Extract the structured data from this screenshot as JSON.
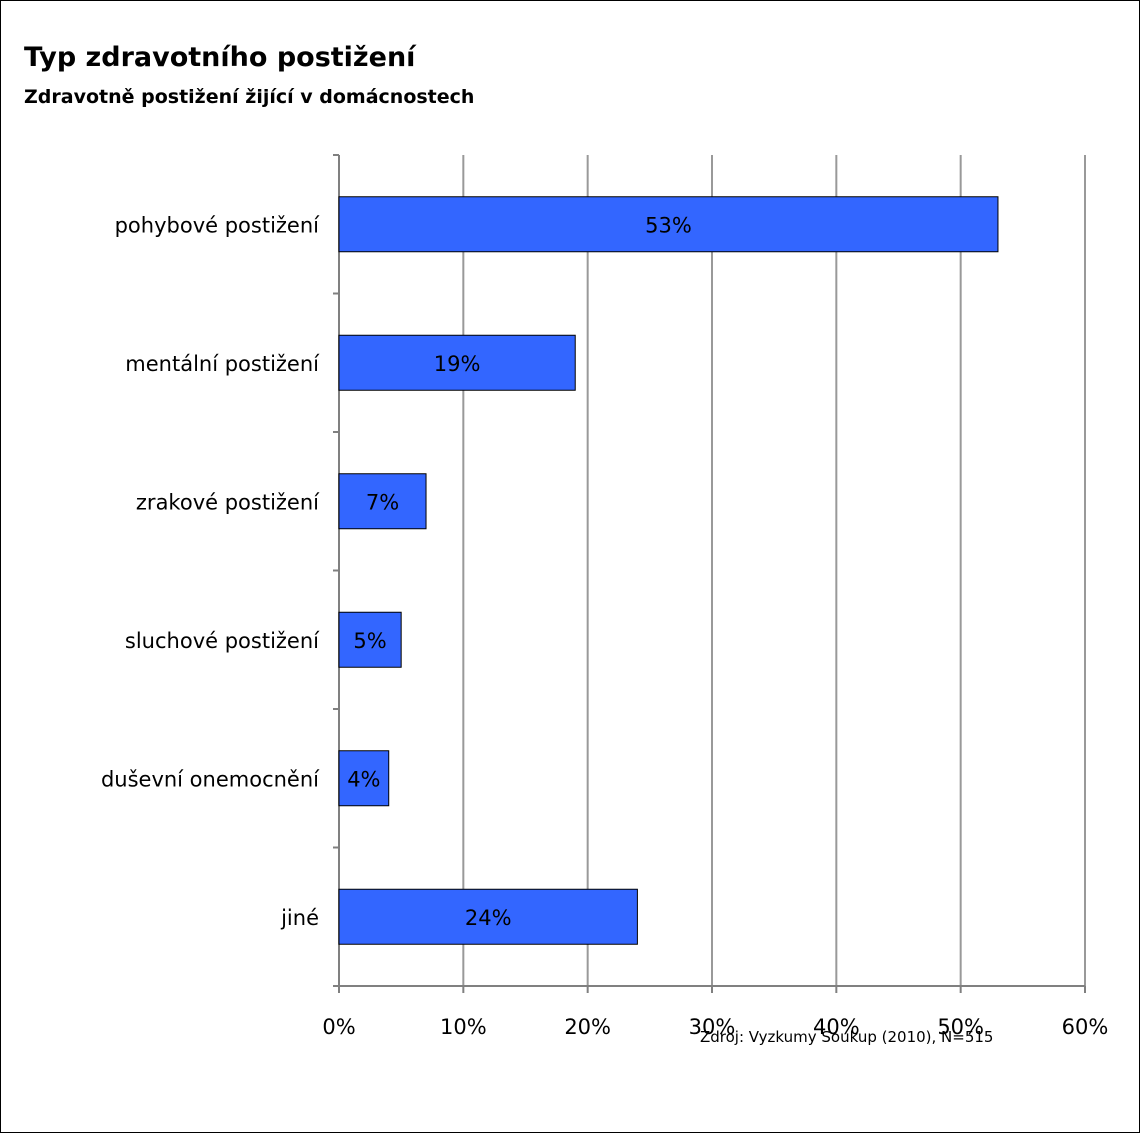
{
  "title": "Typ zdravotního postižení",
  "subtitle": "Zdravotně postižení žijící v domácnostech",
  "source": "Zdroj:  Vyzkumy Soukup (2010), N=515",
  "colors": {
    "bar": "#3366ff",
    "bar_stroke": "#000000",
    "grid": "#999999",
    "axis": "#808080",
    "text": "#000000"
  },
  "chart_data": {
    "type": "bar",
    "orientation": "horizontal",
    "categories": [
      "pohybové postižení",
      "mentální postižení",
      "zrakové postižení",
      "sluchové postižení",
      "duševní onemocnění",
      "jiné"
    ],
    "values": [
      53,
      19,
      7,
      5,
      4,
      24
    ],
    "data_labels": [
      "53%",
      "19%",
      "7%",
      "5%",
      "4%",
      "24%"
    ],
    "x_ticks": [
      "0%",
      "10%",
      "20%",
      "30%",
      "40%",
      "50%",
      "60%"
    ],
    "xlim": [
      0,
      60
    ],
    "grid": true,
    "legend": "none"
  }
}
